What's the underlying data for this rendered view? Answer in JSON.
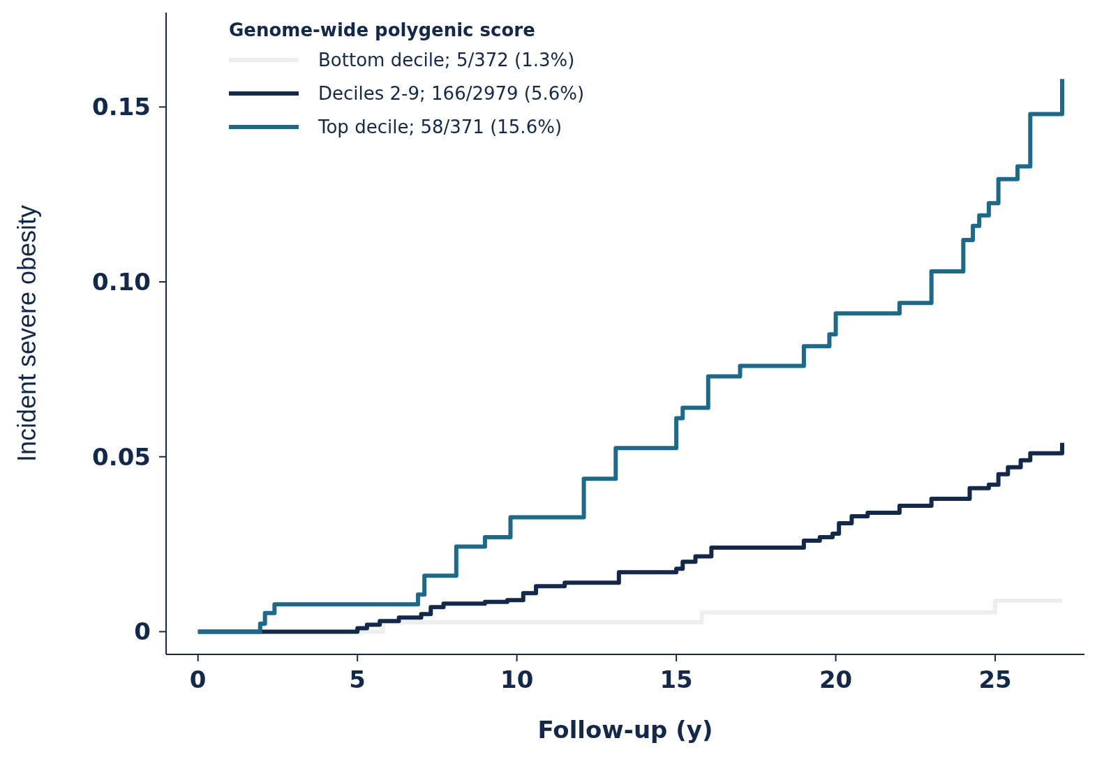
{
  "chart_data": {
    "type": "step",
    "xlabel": "Follow-up (y)",
    "ylabel": "Incident severe obesity",
    "legend_title": "Genome-wide polygenic score",
    "legend": "top left",
    "xlim": [
      -1,
      27.8
    ],
    "ylim": [
      -0.0065,
      0.177
    ],
    "xticks": [
      0,
      5,
      10,
      15,
      20,
      25
    ],
    "yticks": [
      0,
      {
        "value": 0.05,
        "label": "0.05"
      },
      {
        "value": 0.1,
        "label": "0.10"
      },
      {
        "value": 0.15,
        "label": "0.15"
      }
    ],
    "series": [
      {
        "name": "Bottom decile; 5/372 (1.3%)",
        "color": "#eeeeee",
        "x": [
          0,
          5.8,
          15.8,
          25.0,
          27.1
        ],
        "values": [
          0,
          0.0027,
          0.0055,
          0.0088,
          0.0088
        ]
      },
      {
        "name": "Deciles 2-9; 166/2979 (5.6%)",
        "color": "#13294b",
        "x": [
          0,
          5.0,
          5.3,
          5.7,
          6.3,
          7.0,
          7.3,
          7.7,
          9.0,
          9.7,
          10.2,
          10.6,
          11.5,
          13.2,
          15.0,
          15.2,
          15.6,
          16.1,
          19.0,
          19.5,
          19.9,
          20.1,
          20.5,
          21.0,
          22.0,
          23.0,
          24.2,
          24.8,
          25.1,
          25.4,
          25.8,
          26.1,
          27.1,
          27.1
        ],
        "values": [
          0,
          0.001,
          0.002,
          0.003,
          0.004,
          0.005,
          0.007,
          0.008,
          0.0085,
          0.009,
          0.011,
          0.013,
          0.014,
          0.017,
          0.018,
          0.02,
          0.0215,
          0.024,
          0.026,
          0.027,
          0.028,
          0.031,
          0.033,
          0.034,
          0.036,
          0.038,
          0.041,
          0.042,
          0.045,
          0.047,
          0.049,
          0.051,
          0.051,
          0.054
        ]
      },
      {
        "name": "Top decile; 58/371 (15.6%)",
        "color": "#1b6a8a",
        "x": [
          0,
          1.95,
          2.1,
          2.4,
          6.9,
          7.1,
          8.1,
          9.0,
          9.8,
          12.1,
          13.1,
          15.0,
          15.2,
          16.0,
          17.0,
          19.0,
          19.8,
          20.0,
          22.0,
          23.0,
          24.0,
          24.3,
          24.5,
          24.8,
          25.1,
          25.7,
          26.1,
          27.1,
          27.1
        ],
        "values": [
          0,
          0.0023,
          0.0053,
          0.0078,
          0.0106,
          0.016,
          0.0243,
          0.027,
          0.0327,
          0.0437,
          0.0525,
          0.061,
          0.064,
          0.073,
          0.076,
          0.0816,
          0.085,
          0.091,
          0.094,
          0.103,
          0.112,
          0.116,
          0.119,
          0.1225,
          0.1294,
          0.133,
          0.148,
          0.148,
          0.158
        ]
      }
    ]
  }
}
